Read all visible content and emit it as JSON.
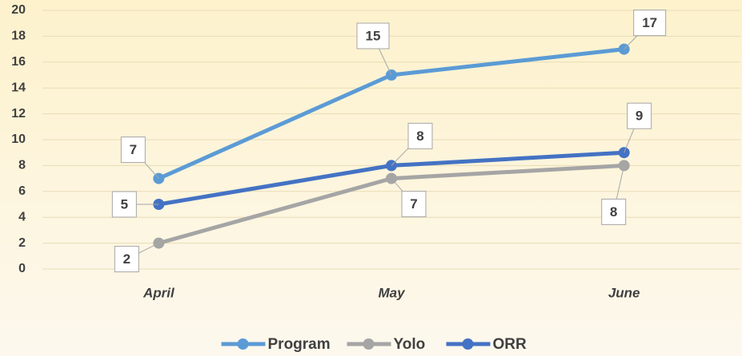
{
  "chart_data": {
    "type": "line",
    "categories": [
      "April",
      "May",
      "June"
    ],
    "series": [
      {
        "name": "Program",
        "color": "#5b9bd5",
        "values": [
          7,
          15,
          17
        ]
      },
      {
        "name": "Yolo",
        "color": "#a5a5a5",
        "values": [
          2,
          7,
          8
        ]
      },
      {
        "name": "ORR",
        "color": "#4472c4",
        "values": [
          5,
          8,
          9
        ]
      }
    ],
    "ylim": [
      0,
      20
    ],
    "yticks": [
      0,
      2,
      4,
      6,
      8,
      10,
      12,
      14,
      16,
      18,
      20
    ],
    "grid": true,
    "legend": "bottom"
  }
}
